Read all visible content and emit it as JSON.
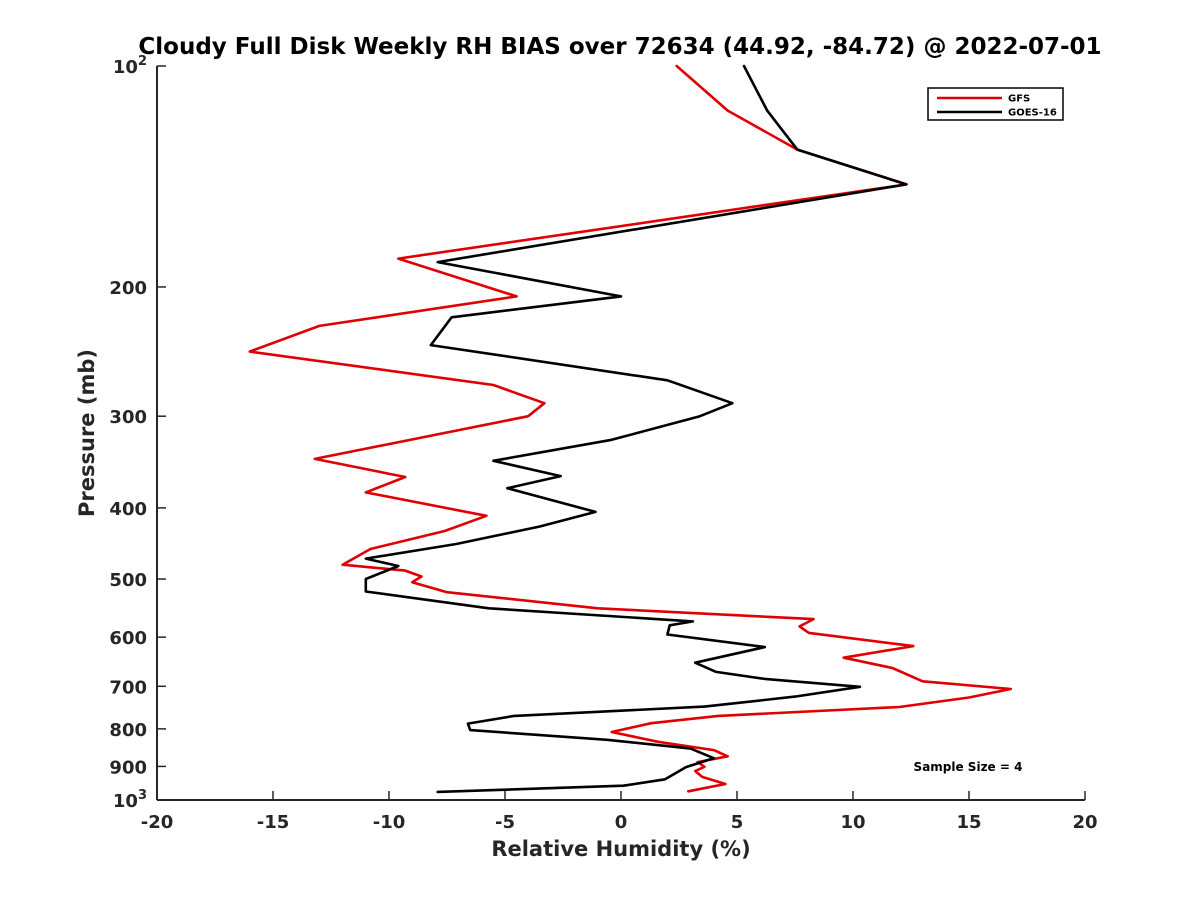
{
  "chart_data": {
    "type": "line",
    "title": "Cloudy Full Disk Weekly RH BIAS over 72634 (44.92, -84.72) @ 2022-07-01",
    "xlabel": "Relative Humidity (%)",
    "ylabel": "Pressure (mb)",
    "xlim": [
      -20,
      20
    ],
    "ylim": [
      100,
      1000
    ],
    "yscale": "log",
    "y_reversed": true,
    "x_ticks": [
      "-20",
      "-15",
      "-10",
      "-5",
      "0",
      "5",
      "10",
      "15",
      "20"
    ],
    "y_ticks": [
      {
        "value": 100,
        "base": "10",
        "exp": "2"
      },
      {
        "value": 200,
        "label": "200"
      },
      {
        "value": 300,
        "label": "300"
      },
      {
        "value": 400,
        "label": "400"
      },
      {
        "value": 500,
        "label": "500"
      },
      {
        "value": 600,
        "label": "600"
      },
      {
        "value": 700,
        "label": "700"
      },
      {
        "value": 800,
        "label": "800"
      },
      {
        "value": 900,
        "label": "900"
      },
      {
        "value": 1000,
        "base": "10",
        "exp": "3"
      }
    ],
    "grid": false,
    "legend_position": "top-right",
    "annotation": "Sample Size = 4",
    "series": [
      {
        "name": "GFS",
        "color": "#e00000",
        "points": [
          [
            2.4,
            100
          ],
          [
            4.6,
            115
          ],
          [
            7.6,
            130
          ],
          [
            12.3,
            145
          ],
          [
            -9.6,
            183
          ],
          [
            -4.5,
            206
          ],
          [
            -13,
            226
          ],
          [
            -16,
            245
          ],
          [
            -5.5,
            272
          ],
          [
            -3.3,
            288
          ],
          [
            -4,
            300
          ],
          [
            -13.2,
            343
          ],
          [
            -9.3,
            363
          ],
          [
            -11,
            381
          ],
          [
            -5.8,
            410
          ],
          [
            -7.6,
            430
          ],
          [
            -10.8,
            455
          ],
          [
            -12,
            478
          ],
          [
            -9.3,
            487
          ],
          [
            -8.6,
            496
          ],
          [
            -9,
            505
          ],
          [
            -7.5,
            521
          ],
          [
            -1,
            548
          ],
          [
            8.3,
            567
          ],
          [
            7.7,
            580
          ],
          [
            8.1,
            592
          ],
          [
            12.6,
            617
          ],
          [
            9.6,
            640
          ],
          [
            11.7,
            661
          ],
          [
            13,
            689
          ],
          [
            16.8,
            706
          ],
          [
            15,
            725
          ],
          [
            12,
            747
          ],
          [
            4.2,
            768
          ],
          [
            1.3,
            786
          ],
          [
            -0.4,
            808
          ],
          [
            1.6,
            833
          ],
          [
            4,
            855
          ],
          [
            4.6,
            872
          ],
          [
            3.3,
            888
          ],
          [
            3.6,
            901
          ],
          [
            3.2,
            913
          ],
          [
            3.5,
            930
          ],
          [
            4.5,
            951
          ],
          [
            2.9,
            973
          ]
        ]
      },
      {
        "name": "GOES-16",
        "color": "#000000",
        "points": [
          [
            5.3,
            100
          ],
          [
            6.3,
            115
          ],
          [
            7.6,
            130
          ],
          [
            12.3,
            145
          ],
          [
            -7.9,
            185
          ],
          [
            0,
            206
          ],
          [
            -7.3,
            220
          ],
          [
            -8.2,
            240
          ],
          [
            2,
            268
          ],
          [
            4.8,
            288
          ],
          [
            3.4,
            300
          ],
          [
            -0.4,
            323
          ],
          [
            -5.5,
            345
          ],
          [
            -2.6,
            362
          ],
          [
            -4.9,
            376
          ],
          [
            -1.1,
            405
          ],
          [
            -3.5,
            424
          ],
          [
            -7.1,
            448
          ],
          [
            -11,
            469
          ],
          [
            -9.6,
            480
          ],
          [
            -11,
            500
          ],
          [
            -11,
            520
          ],
          [
            -5.7,
            548
          ],
          [
            3.1,
            571
          ],
          [
            2.1,
            578
          ],
          [
            2,
            595
          ],
          [
            6.2,
            619
          ],
          [
            3.2,
            650
          ],
          [
            4.1,
            669
          ],
          [
            6.2,
            684
          ],
          [
            10.3,
            701
          ],
          [
            7.5,
            723
          ],
          [
            3.6,
            746
          ],
          [
            -4.6,
            768
          ],
          [
            -6.6,
            787
          ],
          [
            -6.5,
            803
          ],
          [
            -0.6,
            828
          ],
          [
            3,
            851
          ],
          [
            4,
            877
          ],
          [
            2.8,
            902
          ],
          [
            1.9,
            937
          ],
          [
            0.1,
            956
          ],
          [
            -7.9,
            975
          ]
        ]
      }
    ]
  }
}
